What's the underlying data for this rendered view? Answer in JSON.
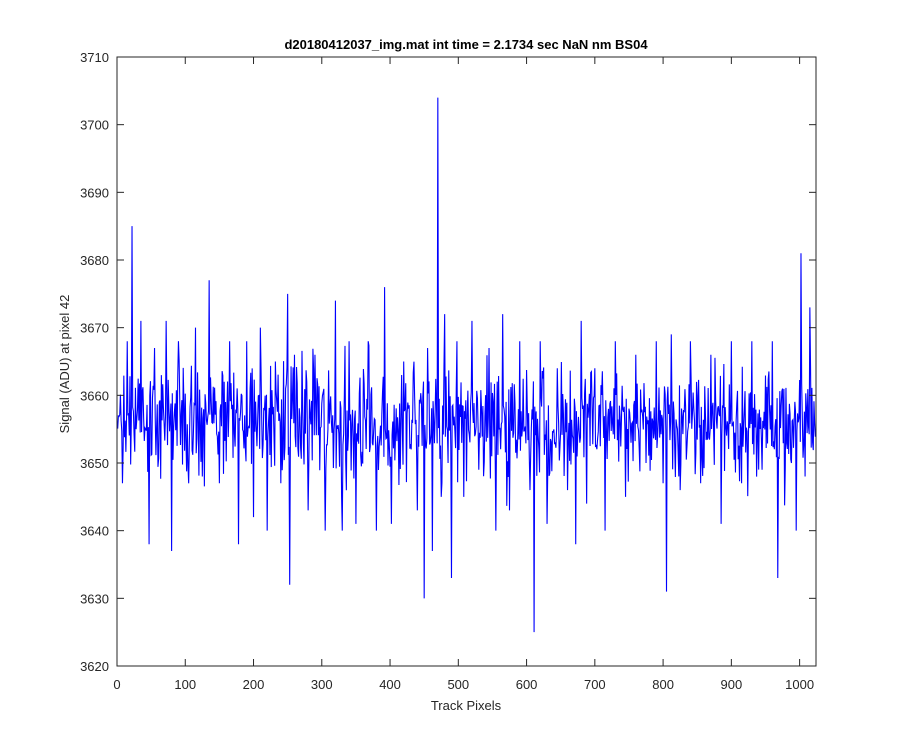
{
  "chart_data": {
    "type": "line",
    "title": "d20180412037_img.mat int time = 2.1734 sec  NaN nm BS04",
    "xlabel": "Track Pixels",
    "ylabel": "Signal (ADU) at pixel 42",
    "xlim": [
      0,
      1024
    ],
    "ylim": [
      3620,
      3710
    ],
    "xticks": [
      0,
      100,
      200,
      300,
      400,
      500,
      600,
      700,
      800,
      900,
      1000
    ],
    "yticks": [
      3620,
      3630,
      3640,
      3650,
      3660,
      3670,
      3680,
      3690,
      3700,
      3710
    ],
    "grid": false,
    "box": true,
    "line_color": "#0000ff",
    "series": [
      {
        "values_note_points": [
          [
            0,
            3650
          ],
          [
            8,
            3647
          ],
          [
            15,
            3668
          ],
          [
            22,
            3685
          ],
          [
            28,
            3655
          ],
          [
            35,
            3671
          ],
          [
            42,
            3655
          ],
          [
            47,
            3638
          ],
          [
            55,
            3667
          ],
          [
            62,
            3659
          ],
          [
            72,
            3671
          ],
          [
            80,
            3637
          ],
          [
            90,
            3668
          ],
          [
            105,
            3647
          ],
          [
            115,
            3670
          ],
          [
            125,
            3648
          ],
          [
            135,
            3677
          ],
          [
            150,
            3647
          ],
          [
            165,
            3668
          ],
          [
            178,
            3638
          ],
          [
            190,
            3668
          ],
          [
            200,
            3642
          ],
          [
            210,
            3670
          ],
          [
            220,
            3640
          ],
          [
            232,
            3665
          ],
          [
            240,
            3647
          ],
          [
            250,
            3675
          ],
          [
            253,
            3632
          ],
          [
            260,
            3666
          ],
          [
            280,
            3643
          ],
          [
            290,
            3666
          ],
          [
            305,
            3640
          ],
          [
            320,
            3674
          ],
          [
            330,
            3640
          ],
          [
            340,
            3668
          ],
          [
            350,
            3641
          ],
          [
            368,
            3668
          ],
          [
            380,
            3640
          ],
          [
            392,
            3676
          ],
          [
            402,
            3641
          ],
          [
            420,
            3665
          ],
          [
            440,
            3643
          ],
          [
            450,
            3630
          ],
          [
            455,
            3667
          ],
          [
            462,
            3637
          ],
          [
            470,
            3704
          ],
          [
            475,
            3645
          ],
          [
            480,
            3672
          ],
          [
            485,
            3650
          ],
          [
            490,
            3633
          ],
          [
            498,
            3668
          ],
          [
            508,
            3645
          ],
          [
            520,
            3671
          ],
          [
            530,
            3649
          ],
          [
            545,
            3667
          ],
          [
            555,
            3640
          ],
          [
            565,
            3672
          ],
          [
            575,
            3643
          ],
          [
            590,
            3668
          ],
          [
            605,
            3646
          ],
          [
            611,
            3625
          ],
          [
            620,
            3668
          ],
          [
            630,
            3641
          ],
          [
            645,
            3664
          ],
          [
            660,
            3646
          ],
          [
            672,
            3638
          ],
          [
            680,
            3671
          ],
          [
            688,
            3644
          ],
          [
            700,
            3664
          ],
          [
            715,
            3640
          ],
          [
            730,
            3668
          ],
          [
            745,
            3645
          ],
          [
            760,
            3666
          ],
          [
            775,
            3650
          ],
          [
            790,
            3668
          ],
          [
            800,
            3647
          ],
          [
            805,
            3631
          ],
          [
            812,
            3669
          ],
          [
            825,
            3646
          ],
          [
            840,
            3668
          ],
          [
            855,
            3647
          ],
          [
            870,
            3666
          ],
          [
            885,
            3641
          ],
          [
            900,
            3668
          ],
          [
            915,
            3647
          ],
          [
            930,
            3668
          ],
          [
            945,
            3649
          ],
          [
            960,
            3668
          ],
          [
            968,
            3633
          ],
          [
            975,
            3661
          ],
          [
            988,
            3650
          ],
          [
            995,
            3640
          ],
          [
            1002,
            3681
          ],
          [
            1008,
            3648
          ],
          [
            1015,
            3673
          ],
          [
            1024,
            3655
          ]
        ]
      }
    ]
  }
}
